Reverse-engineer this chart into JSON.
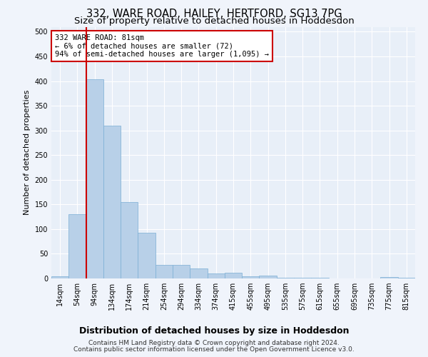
{
  "title": "332, WARE ROAD, HAILEY, HERTFORD, SG13 7PG",
  "subtitle": "Size of property relative to detached houses in Hoddesdon",
  "xlabel": "Distribution of detached houses by size in Hoddesdon",
  "ylabel": "Number of detached properties",
  "categories": [
    "14sqm",
    "54sqm",
    "94sqm",
    "134sqm",
    "174sqm",
    "214sqm",
    "254sqm",
    "294sqm",
    "334sqm",
    "374sqm",
    "415sqm",
    "455sqm",
    "495sqm",
    "535sqm",
    "575sqm",
    "615sqm",
    "655sqm",
    "695sqm",
    "735sqm",
    "775sqm",
    "815sqm"
  ],
  "values": [
    5,
    130,
    403,
    310,
    155,
    93,
    28,
    28,
    20,
    10,
    12,
    5,
    6,
    1,
    1,
    1,
    0,
    0,
    0,
    3,
    1
  ],
  "bar_color": "#b8d0e8",
  "bar_edge_color": "#7aaed4",
  "property_line_color": "#cc0000",
  "annotation_text": "332 WARE ROAD: 81sqm\n← 6% of detached houses are smaller (72)\n94% of semi-detached houses are larger (1,095) →",
  "annotation_box_facecolor": "#ffffff",
  "annotation_box_edgecolor": "#cc0000",
  "footer_line1": "Contains HM Land Registry data © Crown copyright and database right 2024.",
  "footer_line2": "Contains public sector information licensed under the Open Government Licence v3.0.",
  "ylim": [
    0,
    510
  ],
  "yticks": [
    0,
    50,
    100,
    150,
    200,
    250,
    300,
    350,
    400,
    450,
    500
  ],
  "fig_background": "#f0f4fb",
  "plot_background": "#e8eff8",
  "grid_color": "#ffffff",
  "title_fontsize": 10.5,
  "subtitle_fontsize": 9.5,
  "xlabel_fontsize": 9,
  "ylabel_fontsize": 8,
  "tick_fontsize": 7,
  "annotation_fontsize": 7.5,
  "footer_fontsize": 6.5
}
